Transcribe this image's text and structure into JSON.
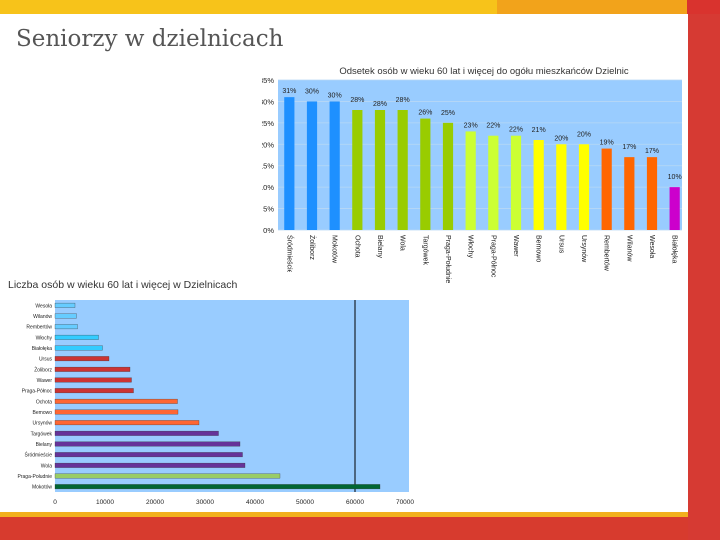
{
  "slide": {
    "title": "Seniorzy w dzielnicach"
  },
  "colors": {
    "plot_bg": "#99ccff",
    "accent_yellow": "#f7c31a",
    "accent_red": "#d63a33"
  },
  "chart_data": [
    {
      "type": "bar",
      "title": "Odsetek osób w wieku 60 lat i więcej do ogółu mieszkańców Dzielnic",
      "xlabel": "",
      "ylabel": "",
      "ylim": [
        0,
        35
      ],
      "yticks": [
        "0%",
        "5%",
        "10%",
        "15%",
        "20%",
        "25%",
        "30%",
        "35%"
      ],
      "grid": true,
      "categories": [
        "Śródmieście",
        "Żoliborz",
        "Mokotów",
        "Ochota",
        "Bielany",
        "Wola",
        "Targówek",
        "Praga-Południe",
        "Włochy",
        "Praga-Północ",
        "Wawer",
        "Bemowo",
        "Ursus",
        "Ursynów",
        "Rembertów",
        "Wilanów",
        "Wesoła",
        "Białołęka"
      ],
      "values": [
        31,
        30,
        30,
        28,
        28,
        28,
        26,
        25,
        23,
        22,
        22,
        21,
        20,
        20,
        19,
        17,
        17,
        10
      ],
      "labels": [
        "31%",
        "30%",
        "30%",
        "28%",
        "28%",
        "28%",
        "26%",
        "25%",
        "23%",
        "22%",
        "22%",
        "21%",
        "20%",
        "20%",
        "19%",
        "17%",
        "17%",
        "10%"
      ],
      "colors": [
        "#1e90ff",
        "#1e90ff",
        "#1e90ff",
        "#99cc00",
        "#99cc00",
        "#99cc00",
        "#99cc00",
        "#99cc00",
        "#ccff33",
        "#ccff33",
        "#ccff33",
        "#ffff00",
        "#ffff00",
        "#ffff00",
        "#ff6600",
        "#ff6600",
        "#ff6600",
        "#cc00cc"
      ]
    },
    {
      "type": "bar",
      "orientation": "horizontal",
      "title": "Liczba osób w wieku 60 lat i więcej w Dzielnicach",
      "xlim": [
        0,
        70000
      ],
      "xticks": [
        "0",
        "10000",
        "20000",
        "30000",
        "40000",
        "50000",
        "60000",
        "70000"
      ],
      "reference_line": 60000,
      "categories": [
        "Wesoła",
        "Wilanów",
        "Rembertów",
        "Włochy",
        "Białołęka",
        "Ursus",
        "Żoliborz",
        "Wawer",
        "Praga-Północ",
        "Ochota",
        "Bemowo",
        "Ursynów",
        "Targówek",
        "Bielany",
        "Śródmieście",
        "Wola",
        "Praga-Południe",
        "Mokotów"
      ],
      "values": [
        4000,
        4300,
        4500,
        8700,
        9500,
        10800,
        15000,
        15300,
        15700,
        24500,
        24600,
        28800,
        32700,
        37000,
        37500,
        38000,
        45000,
        65000
      ],
      "colors": [
        "#66ccff",
        "#66ccff",
        "#66ccff",
        "#33ccff",
        "#33ccff",
        "#cc3333",
        "#cc3333",
        "#cc3333",
        "#cc3333",
        "#ff6633",
        "#ff6633",
        "#ff6633",
        "#663399",
        "#663399",
        "#663399",
        "#663399",
        "#99cc66",
        "#006633"
      ]
    }
  ]
}
